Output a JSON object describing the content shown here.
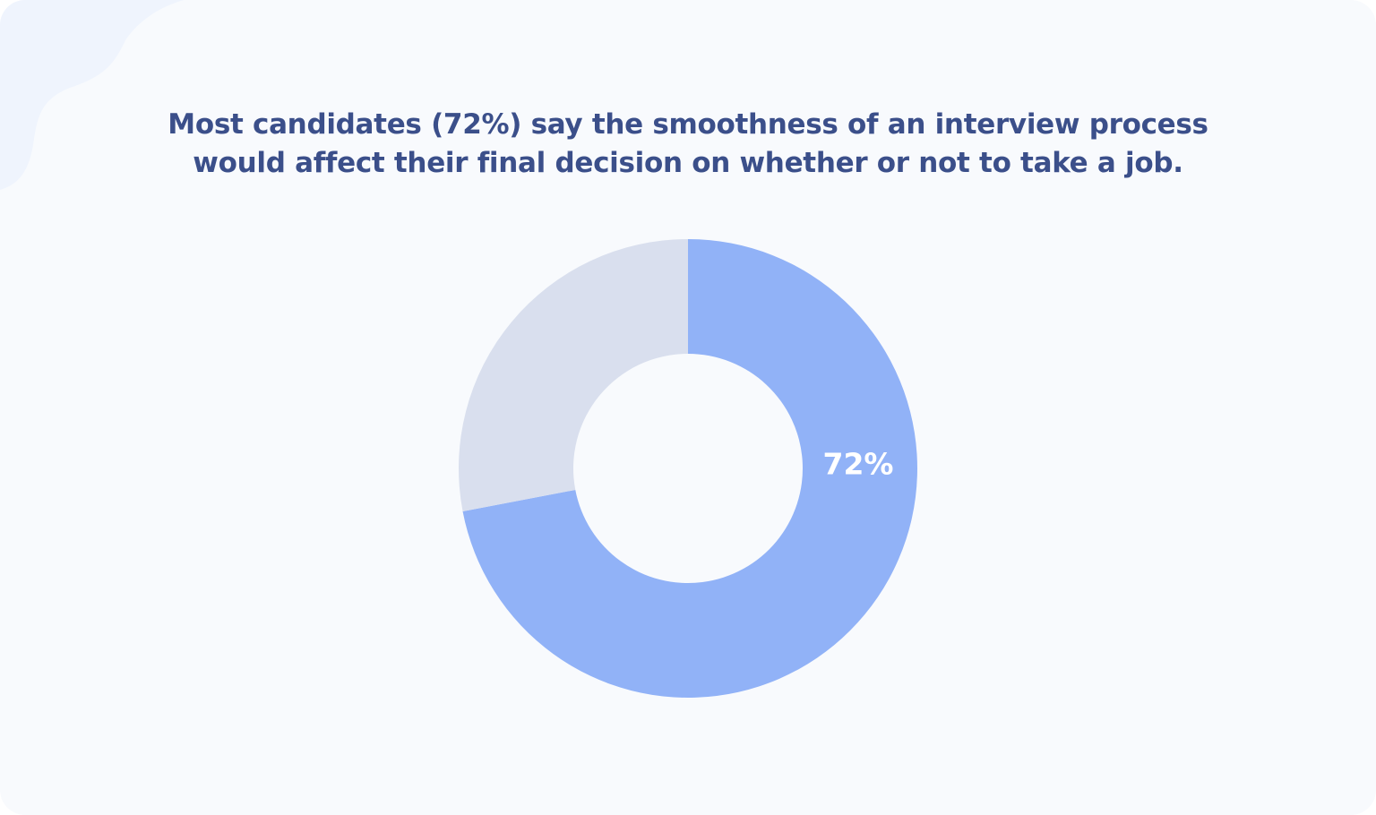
{
  "chart_data": {
    "type": "pie",
    "style": "donut",
    "title_lines": [
      "Most candidates (72%) say the smoothness of an interview process",
      "would affect their final decision on whether or not to take a job."
    ],
    "slices": [
      {
        "label": "72%",
        "value": 72,
        "color": "#91b2f7"
      },
      {
        "label": "",
        "value": 28,
        "color": "#d9dfee"
      }
    ],
    "legend": "none"
  },
  "colors": {
    "background": "#f8fafd",
    "title": "#3b4f8a",
    "decor_blob": "#eff4fd"
  }
}
